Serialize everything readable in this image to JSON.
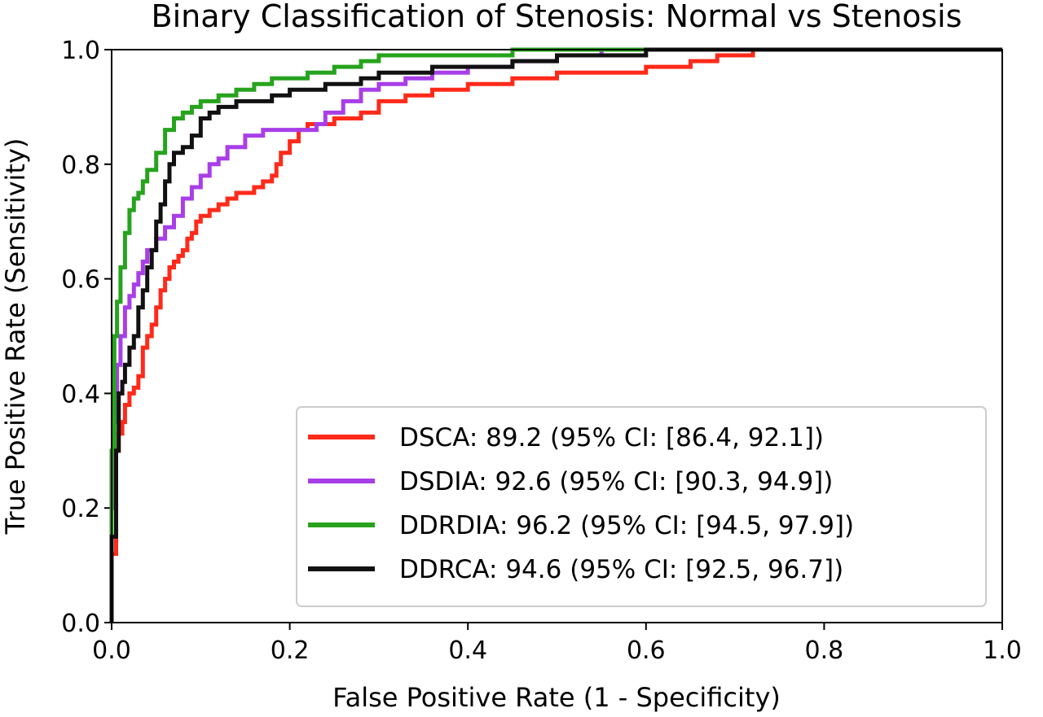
{
  "chart_data": {
    "type": "line",
    "title": "Binary Classification of Stenosis: Normal vs Stenosis",
    "xlabel": "False Positive Rate (1 - Specificity)",
    "ylabel": "True Positive Rate (Sensitivity)",
    "xlim": [
      0.0,
      1.0
    ],
    "ylim": [
      0.0,
      1.0
    ],
    "xticks": [
      "0.0",
      "0.2",
      "0.4",
      "0.6",
      "0.8",
      "1.0"
    ],
    "yticks": [
      "0.0",
      "0.2",
      "0.4",
      "0.6",
      "0.8",
      "1.0"
    ],
    "grid": false,
    "legend_position": "lower-right",
    "series": [
      {
        "name": "DSCA: 89.2 (95% CI: [86.4, 92.1])",
        "color": "#ff2a1a",
        "x": [
          0.0,
          0.005,
          0.008,
          0.012,
          0.015,
          0.02,
          0.025,
          0.03,
          0.035,
          0.04,
          0.045,
          0.05,
          0.055,
          0.06,
          0.065,
          0.07,
          0.075,
          0.08,
          0.085,
          0.09,
          0.095,
          0.1,
          0.11,
          0.12,
          0.13,
          0.14,
          0.15,
          0.16,
          0.17,
          0.18,
          0.185,
          0.19,
          0.2,
          0.21,
          0.22,
          0.23,
          0.25,
          0.28,
          0.3,
          0.33,
          0.36,
          0.4,
          0.45,
          0.5,
          0.55,
          0.6,
          0.65,
          0.68,
          0.72,
          0.76,
          0.8,
          1.0
        ],
        "y": [
          0.0,
          0.12,
          0.3,
          0.33,
          0.35,
          0.38,
          0.4,
          0.41,
          0.43,
          0.48,
          0.5,
          0.52,
          0.55,
          0.58,
          0.6,
          0.62,
          0.63,
          0.64,
          0.65,
          0.67,
          0.68,
          0.7,
          0.71,
          0.72,
          0.73,
          0.74,
          0.75,
          0.75,
          0.76,
          0.77,
          0.78,
          0.8,
          0.82,
          0.84,
          0.86,
          0.87,
          0.87,
          0.88,
          0.89,
          0.91,
          0.92,
          0.93,
          0.94,
          0.95,
          0.96,
          0.96,
          0.97,
          0.98,
          0.99,
          1.0,
          1.0,
          1.0
        ]
      },
      {
        "name": "DSDIA: 92.6 (95% CI: [90.3, 94.9])",
        "color": "#a83ee8",
        "x": [
          0.0,
          0.003,
          0.006,
          0.01,
          0.015,
          0.02,
          0.025,
          0.03,
          0.035,
          0.04,
          0.05,
          0.06,
          0.07,
          0.08,
          0.09,
          0.1,
          0.11,
          0.12,
          0.13,
          0.15,
          0.17,
          0.19,
          0.21,
          0.23,
          0.24,
          0.26,
          0.28,
          0.3,
          0.33,
          0.36,
          0.4,
          0.45,
          0.5,
          0.55,
          0.6,
          0.68,
          1.0
        ],
        "y": [
          0.0,
          0.2,
          0.35,
          0.45,
          0.5,
          0.55,
          0.57,
          0.59,
          0.61,
          0.63,
          0.65,
          0.67,
          0.69,
          0.71,
          0.74,
          0.76,
          0.78,
          0.8,
          0.81,
          0.83,
          0.85,
          0.86,
          0.86,
          0.86,
          0.87,
          0.89,
          0.91,
          0.93,
          0.94,
          0.95,
          0.96,
          0.97,
          0.98,
          0.99,
          1.0,
          1.0,
          1.0
        ]
      },
      {
        "name": "DDRDIA: 96.2 (95% CI: [94.5, 97.9])",
        "color": "#27a31d",
        "x": [
          0.0,
          0.003,
          0.006,
          0.01,
          0.015,
          0.02,
          0.025,
          0.03,
          0.035,
          0.04,
          0.05,
          0.06,
          0.07,
          0.08,
          0.09,
          0.1,
          0.12,
          0.14,
          0.16,
          0.18,
          0.2,
          0.22,
          0.25,
          0.28,
          0.3,
          0.32,
          0.35,
          0.4,
          0.45,
          0.5,
          0.55,
          0.6,
          0.68,
          1.0
        ],
        "y": [
          0.0,
          0.3,
          0.5,
          0.56,
          0.62,
          0.68,
          0.72,
          0.74,
          0.75,
          0.77,
          0.79,
          0.82,
          0.86,
          0.88,
          0.89,
          0.9,
          0.91,
          0.92,
          0.93,
          0.94,
          0.95,
          0.95,
          0.96,
          0.97,
          0.98,
          0.99,
          0.99,
          0.99,
          0.99,
          1.0,
          1.0,
          1.0,
          1.0,
          1.0
        ]
      },
      {
        "name": "DDRCA: 94.6 (95% CI: [92.5, 96.7])",
        "color": "#111111",
        "x": [
          0.0,
          0.005,
          0.008,
          0.012,
          0.015,
          0.02,
          0.025,
          0.03,
          0.035,
          0.04,
          0.045,
          0.05,
          0.055,
          0.06,
          0.065,
          0.07,
          0.08,
          0.09,
          0.1,
          0.11,
          0.12,
          0.14,
          0.16,
          0.18,
          0.2,
          0.22,
          0.24,
          0.26,
          0.28,
          0.3,
          0.33,
          0.36,
          0.4,
          0.45,
          0.5,
          0.55,
          0.6,
          0.68,
          0.8,
          1.0
        ],
        "y": [
          0.0,
          0.15,
          0.3,
          0.4,
          0.42,
          0.45,
          0.48,
          0.5,
          0.55,
          0.58,
          0.62,
          0.65,
          0.7,
          0.73,
          0.77,
          0.8,
          0.82,
          0.83,
          0.85,
          0.88,
          0.89,
          0.9,
          0.91,
          0.91,
          0.92,
          0.93,
          0.93,
          0.94,
          0.94,
          0.95,
          0.96,
          0.96,
          0.97,
          0.97,
          0.98,
          0.99,
          0.99,
          1.0,
          1.0,
          1.0
        ]
      }
    ]
  }
}
